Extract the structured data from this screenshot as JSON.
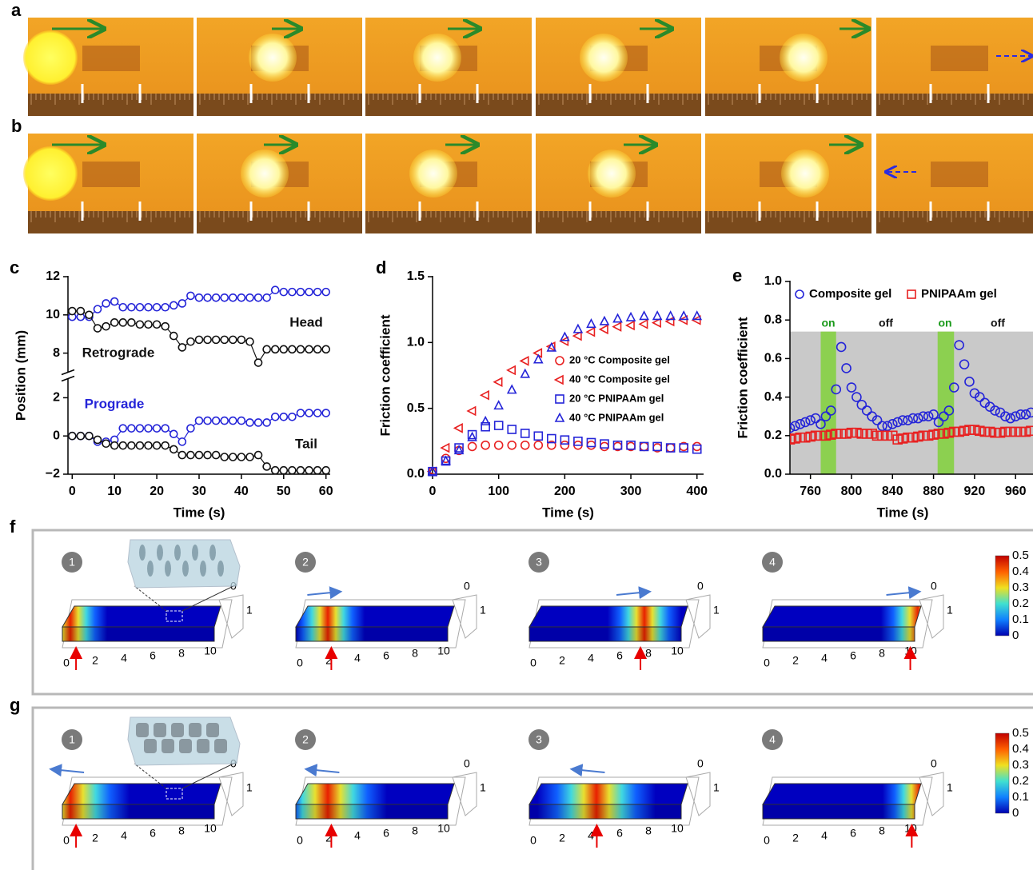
{
  "panel_labels": [
    "a",
    "b",
    "c",
    "d",
    "e",
    "f",
    "g"
  ],
  "chart_data": [
    {
      "type": "line",
      "x_label": "Time (s)",
      "y_label": "Position (mm)",
      "x": [
        0,
        2,
        4,
        6,
        8,
        10,
        12,
        14,
        16,
        18,
        20,
        22,
        24,
        26,
        28,
        30,
        32,
        34,
        36,
        38,
        40,
        42,
        44,
        46,
        48,
        50,
        52,
        54,
        56,
        58,
        60
      ],
      "series": [
        {
          "color": "#2424d8",
          "marker": "circle",
          "values": [
            9.9,
            9.9,
            9.9,
            10.3,
            10.6,
            10.7,
            10.4,
            10.4,
            10.4,
            10.4,
            10.4,
            10.4,
            10.5,
            10.6,
            11.0,
            10.9,
            10.9,
            10.9,
            10.9,
            10.9,
            10.9,
            10.9,
            10.9,
            10.9,
            11.3,
            11.2,
            11.2,
            11.2,
            11.2,
            11.2,
            11.2
          ]
        },
        {
          "color": "#111111",
          "marker": "circle",
          "values": [
            10.2,
            10.2,
            10.0,
            9.3,
            9.4,
            9.6,
            9.6,
            9.6,
            9.5,
            9.5,
            9.5,
            9.4,
            8.9,
            8.3,
            8.6,
            8.7,
            8.7,
            8.7,
            8.7,
            8.7,
            8.7,
            8.6,
            7.5,
            8.2,
            8.2,
            8.2,
            8.2,
            8.2,
            8.2,
            8.2,
            8.2
          ]
        },
        {
          "color": "#2424d8",
          "marker": "square",
          "values": [
            0,
            0,
            0,
            -0.3,
            -0.3,
            -0.2,
            0.4,
            0.4,
            0.4,
            0.4,
            0.4,
            0.4,
            0.1,
            -0.3,
            0.4,
            0.8,
            0.8,
            0.8,
            0.8,
            0.8,
            0.8,
            0.7,
            0.7,
            0.7,
            1.0,
            1.0,
            1.0,
            1.2,
            1.2,
            1.2,
            1.2
          ]
        },
        {
          "color": "#111111",
          "marker": "square",
          "values": [
            0,
            0,
            0,
            -0.2,
            -0.4,
            -0.5,
            -0.5,
            -0.5,
            -0.5,
            -0.5,
            -0.5,
            -0.5,
            -0.7,
            -1.0,
            -1.0,
            -1.0,
            -1.0,
            -1.0,
            -1.1,
            -1.1,
            -1.1,
            -1.1,
            -1.0,
            -1.6,
            -1.8,
            -1.8,
            -1.8,
            -1.8,
            -1.8,
            -1.8,
            -1.8
          ]
        }
      ],
      "annotations": [
        {
          "text": "Head",
          "color": "#111111"
        },
        {
          "text": "Retrograde",
          "color": "#111111"
        },
        {
          "text": "Prograde",
          "color": "#2424d8"
        },
        {
          "text": "Tail",
          "color": "#111111"
        }
      ],
      "xlim": [
        -1,
        61
      ],
      "xticks": [
        0,
        10,
        20,
        30,
        40,
        50,
        60
      ],
      "ylim": [
        -2,
        12
      ],
      "yticks": [
        12,
        10,
        8,
        2,
        0,
        {
          "value": -2,
          "label": "−2"
        }
      ],
      "axis_break": [
        3,
        7
      ]
    },
    {
      "type": "scatter",
      "x_label": "Time (s)",
      "y_label": "Friction coefficient",
      "x": [
        0,
        20,
        40,
        60,
        80,
        100,
        120,
        140,
        160,
        180,
        200,
        220,
        240,
        260,
        280,
        300,
        320,
        340,
        360,
        380,
        400
      ],
      "series": [
        {
          "name": "20 °C Composite gel",
          "color": "#e82020",
          "marker": "circle",
          "values": [
            0.02,
            0.12,
            0.18,
            0.21,
            0.22,
            0.22,
            0.22,
            0.22,
            0.22,
            0.22,
            0.22,
            0.22,
            0.22,
            0.21,
            0.21,
            0.21,
            0.21,
            0.2,
            0.2,
            0.21,
            0.21
          ]
        },
        {
          "name": "40 °C Composite gel",
          "color": "#e82020",
          "marker": "triangle-left",
          "values": [
            0.02,
            0.2,
            0.35,
            0.48,
            0.6,
            0.7,
            0.79,
            0.86,
            0.92,
            0.97,
            1.01,
            1.05,
            1.08,
            1.1,
            1.12,
            1.13,
            1.14,
            1.15,
            1.16,
            1.17,
            1.17
          ]
        },
        {
          "name": "20 °C PNIPAAm gel",
          "color": "#2424d8",
          "marker": "square",
          "values": [
            0.02,
            0.1,
            0.2,
            0.3,
            0.36,
            0.37,
            0.34,
            0.31,
            0.29,
            0.27,
            0.26,
            0.25,
            0.24,
            0.23,
            0.22,
            0.22,
            0.21,
            0.21,
            0.2,
            0.2,
            0.19
          ]
        },
        {
          "name": "40 °C PNIPAAm gel",
          "color": "#2424d8",
          "marker": "triangle",
          "values": [
            0.02,
            0.1,
            0.18,
            0.28,
            0.4,
            0.52,
            0.64,
            0.76,
            0.87,
            0.96,
            1.04,
            1.1,
            1.14,
            1.16,
            1.18,
            1.19,
            1.2,
            1.2,
            1.2,
            1.2,
            1.2
          ]
        }
      ],
      "legend": "center-right",
      "xlim": [
        0,
        410
      ],
      "xticks": [
        0,
        100,
        200,
        300,
        400
      ],
      "ylim": [
        0,
        1.5
      ],
      "yticks": [
        {
          "value": 0,
          "label": "0.0"
        },
        0.5,
        {
          "value": 1,
          "label": "1.0"
        },
        1.5
      ]
    },
    {
      "type": "scatter",
      "x_label": "Time (s)",
      "y_label": "Friction coefficient",
      "x": [
        740,
        745,
        750,
        755,
        760,
        765,
        770,
        775,
        780,
        785,
        790,
        795,
        800,
        805,
        810,
        815,
        820,
        825,
        830,
        835,
        840,
        845,
        850,
        855,
        860,
        865,
        870,
        875,
        880,
        885,
        890,
        895,
        900,
        905,
        910,
        915,
        920,
        925,
        930,
        935,
        940,
        945,
        950,
        955,
        960,
        965,
        970,
        975
      ],
      "series": [
        {
          "name": "Composite gel",
          "color": "#2424d8",
          "marker": "circle",
          "values": [
            0.24,
            0.25,
            0.26,
            0.27,
            0.28,
            0.29,
            0.26,
            0.3,
            0.33,
            0.44,
            0.66,
            0.55,
            0.45,
            0.4,
            0.36,
            0.33,
            0.3,
            0.28,
            0.25,
            0.25,
            0.26,
            0.27,
            0.28,
            0.28,
            0.29,
            0.29,
            0.3,
            0.3,
            0.31,
            0.27,
            0.3,
            0.33,
            0.45,
            0.67,
            0.57,
            0.48,
            0.42,
            0.4,
            0.37,
            0.35,
            0.33,
            0.32,
            0.3,
            0.29,
            0.3,
            0.31,
            0.31,
            0.32
          ]
        },
        {
          "name": "PNIPAAm gel",
          "color": "#e82020",
          "marker": "square",
          "values": [
            0.18,
            0.185,
            0.19,
            0.19,
            0.195,
            0.2,
            0.2,
            0.2,
            0.205,
            0.21,
            0.21,
            0.21,
            0.215,
            0.215,
            0.21,
            0.21,
            0.21,
            0.2,
            0.2,
            0.2,
            0.2,
            0.18,
            0.185,
            0.19,
            0.19,
            0.195,
            0.2,
            0.2,
            0.205,
            0.21,
            0.21,
            0.215,
            0.22,
            0.22,
            0.225,
            0.23,
            0.23,
            0.225,
            0.22,
            0.22,
            0.215,
            0.215,
            0.22,
            0.22,
            0.22,
            0.22,
            0.22,
            0.225
          ]
        }
      ],
      "legend": "top",
      "shade_top": 0.74,
      "bands": [
        [
          770,
          785
        ],
        [
          884,
          900
        ]
      ],
      "annotations": [
        {
          "text": "on",
          "color": "#1a9a1a"
        },
        {
          "text": "off",
          "color": "#111111"
        },
        {
          "text": "on",
          "color": "#1a9a1a"
        },
        {
          "text": "off",
          "color": "#111111"
        }
      ],
      "xlim": [
        740,
        977
      ],
      "xticks": [
        760,
        800,
        840,
        880,
        920,
        960
      ],
      "ylim": [
        0,
        1.0
      ],
      "yticks": [
        {
          "value": 0,
          "label": "0.0"
        },
        0.2,
        0.4,
        0.6,
        0.8,
        {
          "value": 1,
          "label": "1.0"
        }
      ]
    }
  ],
  "simulations": {
    "steps": [
      "1",
      "2",
      "3",
      "4"
    ],
    "x_ticks": [
      0,
      2,
      4,
      6,
      8,
      10
    ],
    "z_ticks": [
      0,
      1
    ],
    "colorbar_ticks": [
      0.5,
      0.4,
      0.3,
      0.2,
      0.1,
      0
    ]
  }
}
